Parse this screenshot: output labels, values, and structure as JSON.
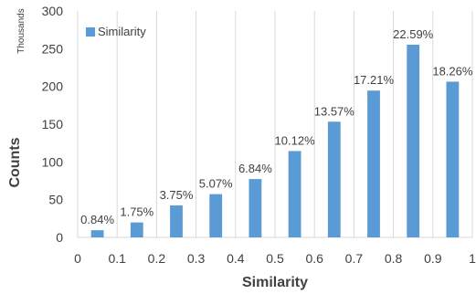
{
  "chart_data": {
    "type": "bar",
    "xlabel": "Similarity",
    "ylabel": "Counts",
    "y_unit": "Thousands",
    "legend": {
      "label": "Similarity",
      "placement": "top-left"
    },
    "x_ticks": [
      "0",
      "0.1",
      "0.2",
      "0.3",
      "0.4",
      "0.5",
      "0.6",
      "0.7",
      "0.8",
      "0.9",
      "1"
    ],
    "y_ticks": [
      "0",
      "50",
      "100",
      "150",
      "200",
      "250",
      "300"
    ],
    "xlim": [
      0,
      1
    ],
    "ylim": [
      0,
      300
    ],
    "grid": "vertical",
    "bar_color": "#5b9bd5",
    "bins": [
      {
        "x": 0.05,
        "value": 9.5,
        "label": "0.84%"
      },
      {
        "x": 0.15,
        "value": 19.8,
        "label": "1.75%"
      },
      {
        "x": 0.25,
        "value": 42.4,
        "label": "3.75%"
      },
      {
        "x": 0.35,
        "value": 57.3,
        "label": "5.07%"
      },
      {
        "x": 0.45,
        "value": 77.3,
        "label": "6.84%"
      },
      {
        "x": 0.55,
        "value": 114.4,
        "label": "10.12%"
      },
      {
        "x": 0.65,
        "value": 153.3,
        "label": "13.57%"
      },
      {
        "x": 0.75,
        "value": 194.5,
        "label": "17.21%"
      },
      {
        "x": 0.85,
        "value": 255.3,
        "label": "22.59%"
      },
      {
        "x": 0.95,
        "value": 206.3,
        "label": "18.26%"
      }
    ]
  }
}
